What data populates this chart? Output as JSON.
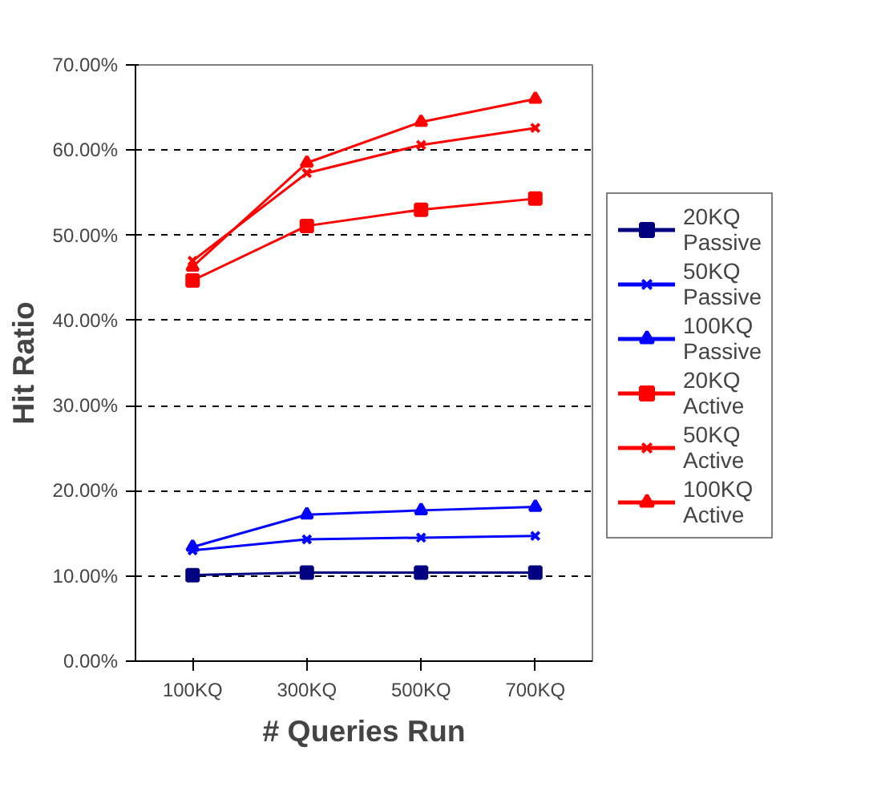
{
  "chart_data": {
    "type": "line",
    "xlabel": "# Queries Run",
    "ylabel": "Hit Ratio",
    "categories": [
      "100KQ",
      "300KQ",
      "500KQ",
      "700KQ"
    ],
    "ylim": [
      0,
      70
    ],
    "yticks": [
      {
        "value": 0,
        "label": "0.00%"
      },
      {
        "value": 10,
        "label": "10.00%"
      },
      {
        "value": 20,
        "label": "20.00%"
      },
      {
        "value": 30,
        "label": "30.00%"
      },
      {
        "value": 40,
        "label": "40.00%"
      },
      {
        "value": 50,
        "label": "50.00%"
      },
      {
        "value": 60,
        "label": "60.00%"
      },
      {
        "value": 70,
        "label": "70.00%"
      }
    ],
    "grid": "y",
    "legend": "right",
    "line_style": "solid",
    "series": [
      {
        "name": "20KQ Passive",
        "color": "#000080",
        "marker": "square",
        "values": [
          10.1,
          10.4,
          10.4,
          10.4
        ]
      },
      {
        "name": "50KQ Passive",
        "color": "#0000ff",
        "marker": "cross",
        "values": [
          13.0,
          14.3,
          14.5,
          14.7
        ]
      },
      {
        "name": "100KQ Passive",
        "color": "#0000ff",
        "marker": "triangle",
        "values": [
          13.4,
          17.2,
          17.7,
          18.1
        ]
      },
      {
        "name": "20KQ Active",
        "color": "#ff0000",
        "marker": "square",
        "values": [
          44.7,
          51.1,
          53.0,
          54.3
        ]
      },
      {
        "name": "50KQ Active",
        "color": "#ff0000",
        "marker": "cross",
        "values": [
          47.0,
          57.3,
          60.6,
          62.6
        ]
      },
      {
        "name": "100KQ Active",
        "color": "#ff0000",
        "marker": "triangle",
        "values": [
          46.3,
          58.5,
          63.3,
          66.0
        ]
      }
    ]
  }
}
